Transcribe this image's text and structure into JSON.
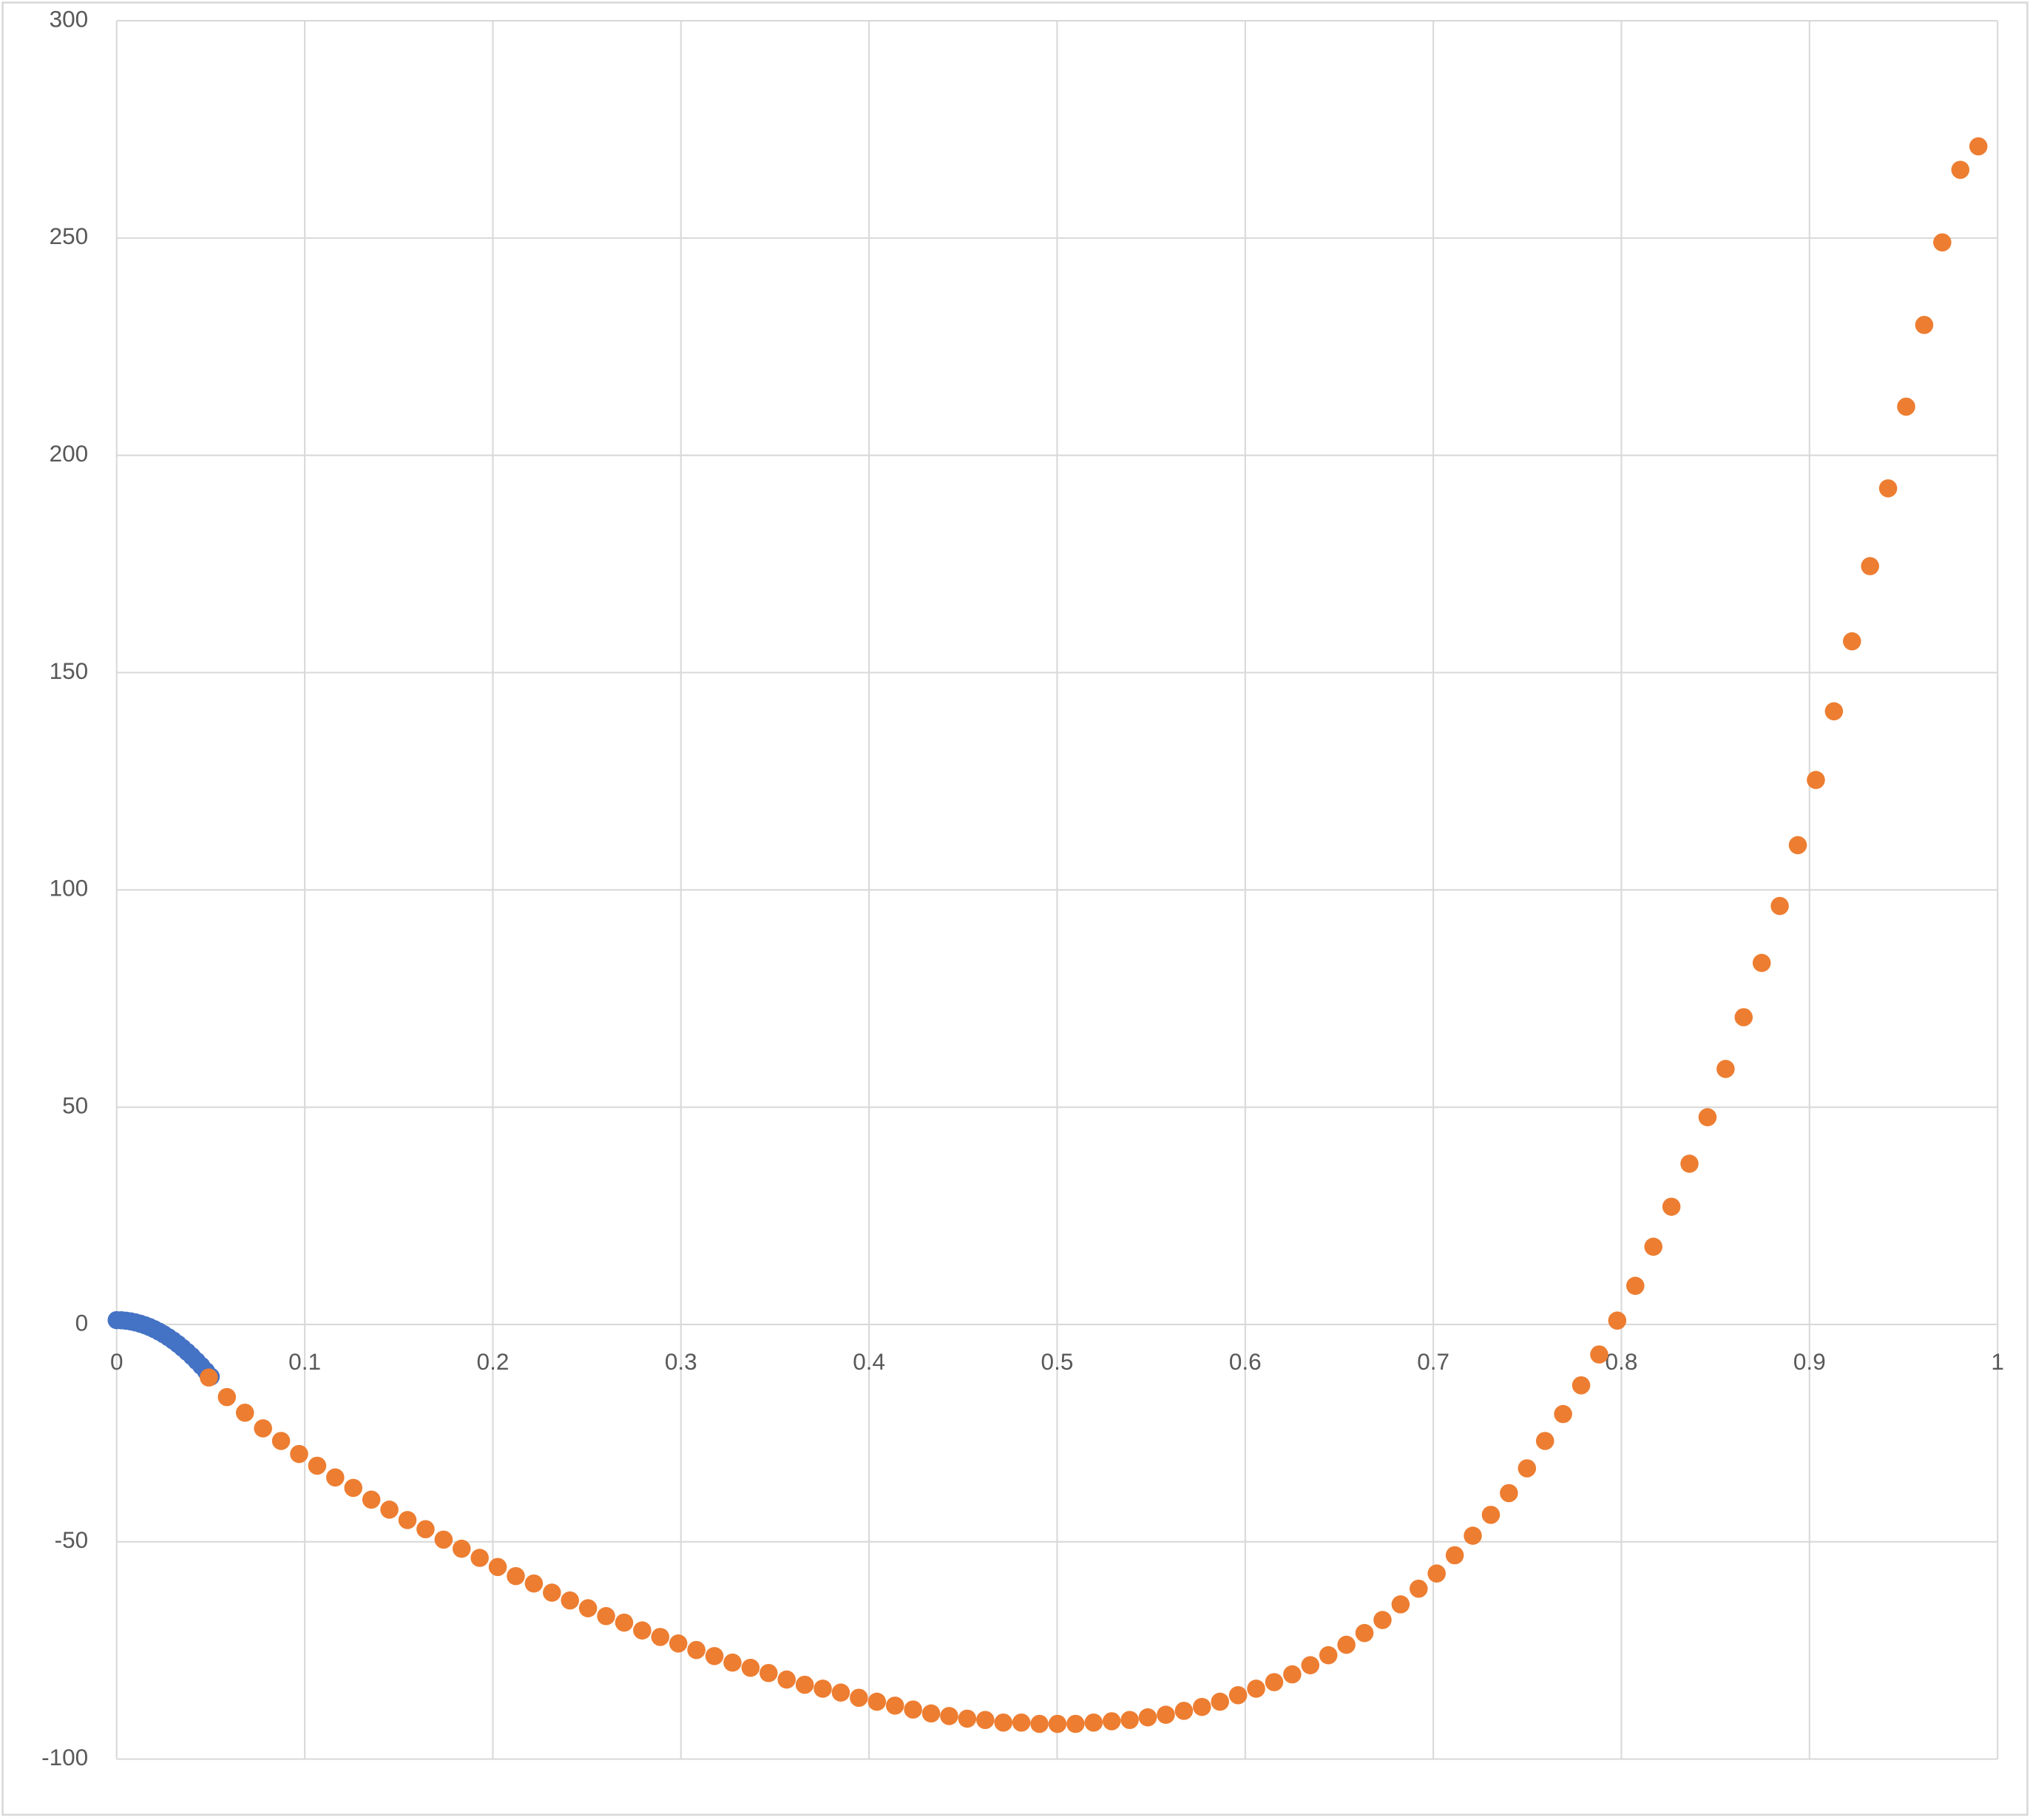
{
  "chart_data": {
    "type": "scatter",
    "series": [
      {
        "color": "#4472c4",
        "x": [
          0,
          0.0025,
          0.005,
          0.0075,
          0.01,
          0.0125,
          0.015,
          0.0175,
          0.02,
          0.0225,
          0.025,
          0.0275,
          0.03,
          0.0325,
          0.035,
          0.0375,
          0.04,
          0.0425,
          0.045,
          0.0475,
          0.05
        ],
        "values": [
          1,
          0.97,
          0.87,
          0.71,
          0.48,
          0.19,
          -0.17,
          -0.59,
          -1.08,
          -1.63,
          -2.25,
          -2.93,
          -3.68,
          -4.49,
          -5.37,
          -6.31,
          -7.32,
          -8.39,
          -9.53,
          -10.73,
          -12
        ]
      },
      {
        "color": "#ed7d31",
        "x": [
          0.049,
          0.0586,
          0.0682,
          0.0778,
          0.0874,
          0.097,
          0.1066,
          0.1162,
          0.1258,
          0.1354,
          0.145,
          0.1546,
          0.1642,
          0.1738,
          0.1834,
          0.193,
          0.2026,
          0.2122,
          0.2218,
          0.2314,
          0.241,
          0.2506,
          0.2602,
          0.2698,
          0.2794,
          0.289,
          0.2986,
          0.3082,
          0.3178,
          0.3274,
          0.337,
          0.3466,
          0.3562,
          0.3658,
          0.3754,
          0.385,
          0.3946,
          0.4042,
          0.4138,
          0.4234,
          0.433,
          0.4426,
          0.4522,
          0.4618,
          0.4714,
          0.481,
          0.4906,
          0.5002,
          0.5098,
          0.5194,
          0.529,
          0.5386,
          0.5482,
          0.5578,
          0.5674,
          0.577,
          0.5866,
          0.5962,
          0.6058,
          0.6154,
          0.625,
          0.6346,
          0.6442,
          0.6538,
          0.6634,
          0.673,
          0.6826,
          0.6922,
          0.7018,
          0.7114,
          0.721,
          0.7306,
          0.7402,
          0.7498,
          0.7594,
          0.769,
          0.7786,
          0.7882,
          0.7978,
          0.8074,
          0.817,
          0.8266,
          0.8362,
          0.8458,
          0.8554,
          0.865,
          0.8746,
          0.8842,
          0.8938,
          0.9034,
          0.913,
          0.9226,
          0.9322,
          0.9418,
          0.9514,
          0.961,
          0.9706,
          0.9802,
          0.9898
        ],
        "values": [
          -12.2,
          -16.7,
          -20.3,
          -23.9,
          -26.8,
          -29.8,
          -32.5,
          -35.2,
          -37.6,
          -40.3,
          -42.6,
          -45.0,
          -47.1,
          -49.5,
          -51.6,
          -53.7,
          -55.8,
          -57.9,
          -59.6,
          -61.7,
          -63.5,
          -65.3,
          -67.1,
          -68.6,
          -70.4,
          -71.9,
          -73.4,
          -74.9,
          -76.3,
          -77.8,
          -79.0,
          -80.2,
          -81.7,
          -82.9,
          -83.8,
          -84.7,
          -85.9,
          -86.8,
          -87.7,
          -88.6,
          -89.5,
          -90.1,
          -90.7,
          -91.0,
          -91.6,
          -91.6,
          -91.9,
          -91.9,
          -91.9,
          -91.6,
          -91.3,
          -91.0,
          -90.4,
          -89.8,
          -88.9,
          -88.0,
          -86.8,
          -85.3,
          -83.8,
          -82.3,
          -80.5,
          -78.4,
          -76.1,
          -73.7,
          -71.0,
          -68.0,
          -64.4,
          -60.8,
          -57.3,
          -53.1,
          -48.6,
          -43.8,
          -38.8,
          -33.1,
          -26.8,
          -20.6,
          -14.0,
          -6.9,
          0.9,
          8.9,
          17.9,
          27.1,
          37.0,
          47.7,
          58.8,
          70.7,
          83.2,
          96.3,
          110.3,
          125.3,
          141.1,
          157.2,
          174.5,
          192.4,
          211.2,
          230.0,
          249.0,
          265.7,
          271.1
        ]
      }
    ],
    "xlim": [
      0,
      1
    ],
    "xticks": [
      0,
      0.1,
      0.2,
      0.3,
      0.4,
      0.5,
      0.6,
      0.7,
      0.8,
      0.9,
      1
    ],
    "ylim": [
      -100,
      300
    ],
    "yticks": [
      -100,
      -50,
      0,
      50,
      100,
      150,
      200,
      250,
      300
    ],
    "grid": true
  }
}
